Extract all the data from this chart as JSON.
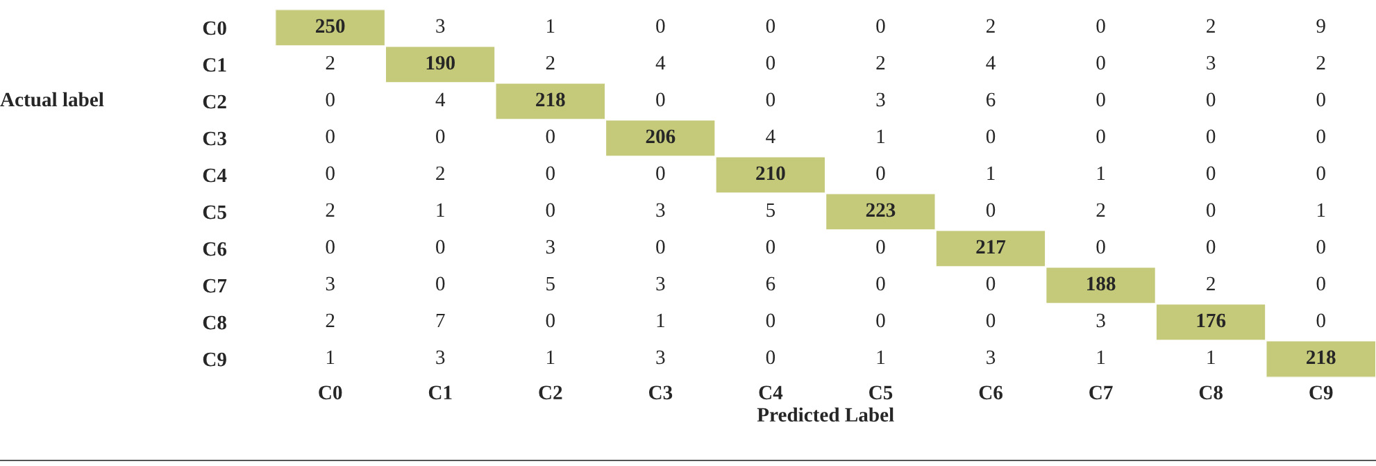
{
  "chart_data": {
    "type": "heatmap",
    "xlabel": "Predicted Label",
    "ylabel": "Actual label",
    "categories": [
      "C0",
      "C1",
      "C2",
      "C3",
      "C4",
      "C5",
      "C6",
      "C7",
      "C8",
      "C9"
    ],
    "y_categories": [
      "C0",
      "C1",
      "C2",
      "C3",
      "C4",
      "C5",
      "C6",
      "C7",
      "C8",
      "C9"
    ],
    "color": "#c5c97a",
    "data_labels": true,
    "cells": [
      [
        250,
        3,
        1,
        0,
        0,
        0,
        2,
        0,
        2,
        9
      ],
      [
        2,
        190,
        2,
        4,
        0,
        2,
        4,
        0,
        3,
        2
      ],
      [
        0,
        4,
        218,
        0,
        0,
        3,
        6,
        0,
        0,
        0
      ],
      [
        0,
        0,
        0,
        206,
        4,
        1,
        0,
        0,
        0,
        0
      ],
      [
        0,
        2,
        0,
        0,
        210,
        0,
        1,
        1,
        0,
        0
      ],
      [
        2,
        1,
        0,
        3,
        5,
        223,
        0,
        2,
        0,
        1
      ],
      [
        0,
        0,
        3,
        0,
        0,
        0,
        217,
        0,
        0,
        0
      ],
      [
        3,
        0,
        5,
        3,
        6,
        0,
        0,
        188,
        2,
        0
      ],
      [
        2,
        7,
        0,
        1,
        0,
        0,
        0,
        3,
        176,
        0
      ],
      [
        1,
        3,
        1,
        3,
        0,
        1,
        3,
        1,
        1,
        218
      ]
    ]
  }
}
